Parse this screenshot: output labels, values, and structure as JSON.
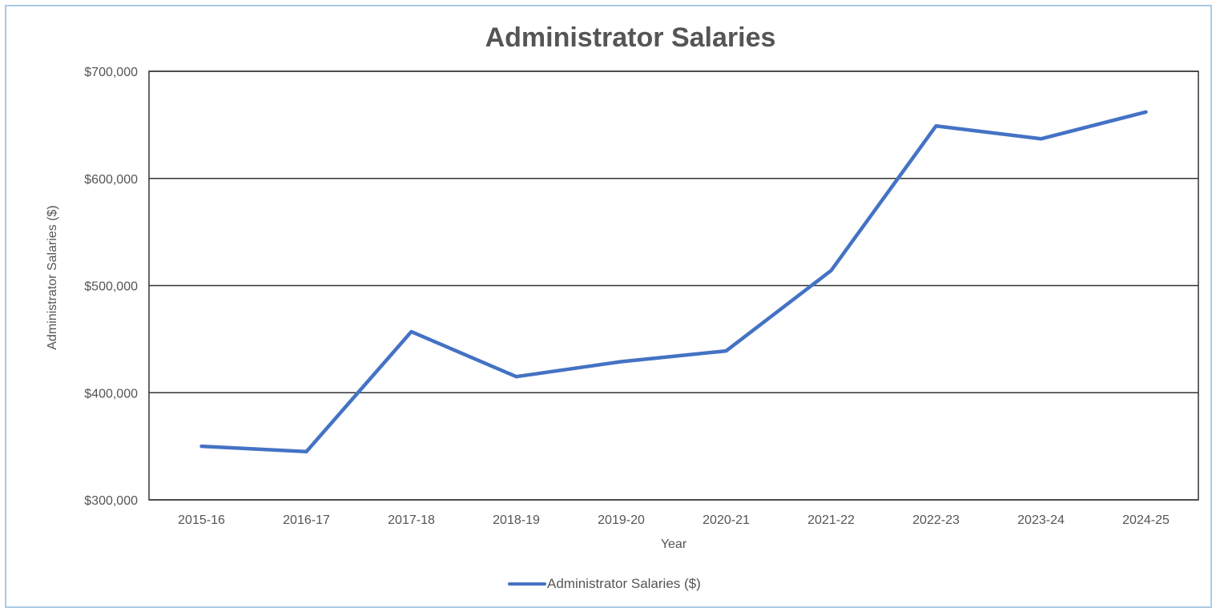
{
  "chart_data": {
    "type": "line",
    "title": "Administrator Salaries",
    "xlabel": "Year",
    "ylabel": "Administrator Salaries ($)",
    "categories": [
      "2015-16",
      "2016-17",
      "2017-18",
      "2018-19",
      "2019-20",
      "2020-21",
      "2021-22",
      "2022-23",
      "2023-24",
      "2024-25"
    ],
    "series": [
      {
        "name": "Administrator Salaries ($)",
        "values": [
          350000,
          345000,
          457000,
          415000,
          429000,
          439000,
          514000,
          649000,
          637000,
          662000
        ],
        "color": "#4472c4"
      }
    ],
    "ylim": [
      300000,
      700000
    ],
    "yticks": [
      300000,
      400000,
      500000,
      600000,
      700000
    ],
    "ytick_labels": [
      "$300,000",
      "$400,000",
      "$500,000",
      "$600,000",
      "$700,000"
    ],
    "grid": true,
    "legend": "bottom-center"
  }
}
